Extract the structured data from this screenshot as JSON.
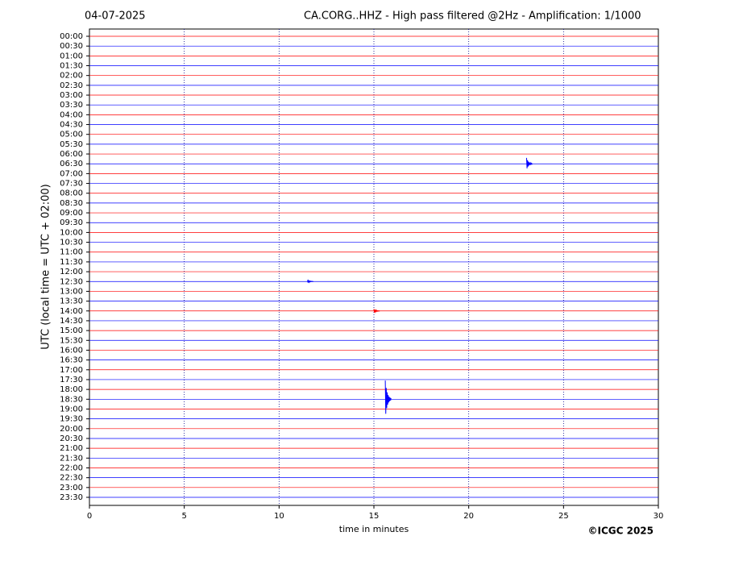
{
  "chart_data": {
    "type": "helicorder",
    "date": "04-07-2025",
    "title": "CA.CORG..HHZ - High pass filtered @2Hz - Amplification: 1/1000",
    "xlabel": "time in minutes",
    "ylabel": "UTC (local time = UTC + 02:00)",
    "credit": "©ICGC 2025",
    "xlim": [
      0,
      30
    ],
    "xticks": [
      0,
      5,
      10,
      15,
      20,
      25,
      30
    ],
    "grid": true,
    "rows": [
      "00:00",
      "00:30",
      "01:00",
      "01:30",
      "02:00",
      "02:30",
      "03:00",
      "03:30",
      "04:00",
      "04:30",
      "05:00",
      "05:30",
      "06:00",
      "06:30",
      "07:00",
      "07:30",
      "08:00",
      "08:30",
      "09:00",
      "09:30",
      "10:00",
      "10:30",
      "11:00",
      "11:30",
      "12:00",
      "12:30",
      "13:00",
      "13:30",
      "14:00",
      "14:30",
      "15:00",
      "15:30",
      "16:00",
      "16:30",
      "17:00",
      "17:30",
      "18:00",
      "18:30",
      "19:00",
      "19:30",
      "20:00",
      "20:30",
      "21:00",
      "21:30",
      "22:00",
      "22:30",
      "23:00",
      "23:30"
    ],
    "row_colors": [
      "#ff0000",
      "#0000ff"
    ],
    "events": [
      {
        "row": "06:30",
        "minute": 23.05,
        "amplitude": 0.6
      },
      {
        "row": "12:30",
        "minute": 11.5,
        "amplitude": 0.15
      },
      {
        "row": "14:00",
        "minute": 15.0,
        "amplitude": 0.2
      },
      {
        "row": "18:30",
        "minute": 15.6,
        "amplitude": 1.9
      }
    ]
  }
}
